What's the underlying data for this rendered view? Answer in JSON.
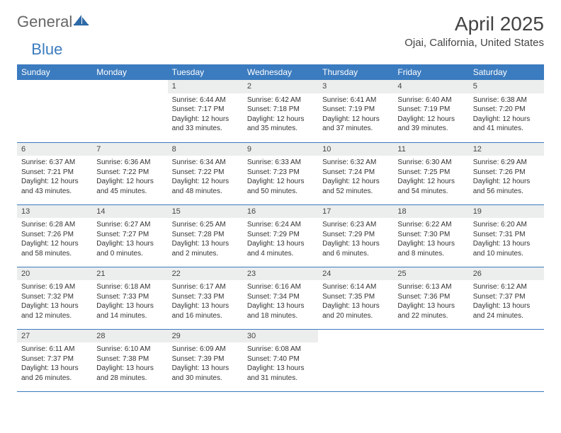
{
  "logo": {
    "text1": "General",
    "text2": "Blue"
  },
  "title": "April 2025",
  "location": "Ojai, California, United States",
  "colors": {
    "header_bg": "#3b7bbf",
    "header_text": "#ffffff",
    "daynum_bg": "#eceded",
    "row_border": "#3b7bbf",
    "text": "#333333",
    "page_bg": "#ffffff"
  },
  "fonts": {
    "title_size_pt": 21,
    "location_size_pt": 11,
    "header_size_pt": 9,
    "body_size_pt": 7.5
  },
  "day_headers": [
    "Sunday",
    "Monday",
    "Tuesday",
    "Wednesday",
    "Thursday",
    "Friday",
    "Saturday"
  ],
  "weeks": [
    [
      null,
      null,
      {
        "n": "1",
        "sr": "6:44 AM",
        "ss": "7:17 PM",
        "dl": "12 hours and 33 minutes."
      },
      {
        "n": "2",
        "sr": "6:42 AM",
        "ss": "7:18 PM",
        "dl": "12 hours and 35 minutes."
      },
      {
        "n": "3",
        "sr": "6:41 AM",
        "ss": "7:19 PM",
        "dl": "12 hours and 37 minutes."
      },
      {
        "n": "4",
        "sr": "6:40 AM",
        "ss": "7:19 PM",
        "dl": "12 hours and 39 minutes."
      },
      {
        "n": "5",
        "sr": "6:38 AM",
        "ss": "7:20 PM",
        "dl": "12 hours and 41 minutes."
      }
    ],
    [
      {
        "n": "6",
        "sr": "6:37 AM",
        "ss": "7:21 PM",
        "dl": "12 hours and 43 minutes."
      },
      {
        "n": "7",
        "sr": "6:36 AM",
        "ss": "7:22 PM",
        "dl": "12 hours and 45 minutes."
      },
      {
        "n": "8",
        "sr": "6:34 AM",
        "ss": "7:22 PM",
        "dl": "12 hours and 48 minutes."
      },
      {
        "n": "9",
        "sr": "6:33 AM",
        "ss": "7:23 PM",
        "dl": "12 hours and 50 minutes."
      },
      {
        "n": "10",
        "sr": "6:32 AM",
        "ss": "7:24 PM",
        "dl": "12 hours and 52 minutes."
      },
      {
        "n": "11",
        "sr": "6:30 AM",
        "ss": "7:25 PM",
        "dl": "12 hours and 54 minutes."
      },
      {
        "n": "12",
        "sr": "6:29 AM",
        "ss": "7:26 PM",
        "dl": "12 hours and 56 minutes."
      }
    ],
    [
      {
        "n": "13",
        "sr": "6:28 AM",
        "ss": "7:26 PM",
        "dl": "12 hours and 58 minutes."
      },
      {
        "n": "14",
        "sr": "6:27 AM",
        "ss": "7:27 PM",
        "dl": "13 hours and 0 minutes."
      },
      {
        "n": "15",
        "sr": "6:25 AM",
        "ss": "7:28 PM",
        "dl": "13 hours and 2 minutes."
      },
      {
        "n": "16",
        "sr": "6:24 AM",
        "ss": "7:29 PM",
        "dl": "13 hours and 4 minutes."
      },
      {
        "n": "17",
        "sr": "6:23 AM",
        "ss": "7:29 PM",
        "dl": "13 hours and 6 minutes."
      },
      {
        "n": "18",
        "sr": "6:22 AM",
        "ss": "7:30 PM",
        "dl": "13 hours and 8 minutes."
      },
      {
        "n": "19",
        "sr": "6:20 AM",
        "ss": "7:31 PM",
        "dl": "13 hours and 10 minutes."
      }
    ],
    [
      {
        "n": "20",
        "sr": "6:19 AM",
        "ss": "7:32 PM",
        "dl": "13 hours and 12 minutes."
      },
      {
        "n": "21",
        "sr": "6:18 AM",
        "ss": "7:33 PM",
        "dl": "13 hours and 14 minutes."
      },
      {
        "n": "22",
        "sr": "6:17 AM",
        "ss": "7:33 PM",
        "dl": "13 hours and 16 minutes."
      },
      {
        "n": "23",
        "sr": "6:16 AM",
        "ss": "7:34 PM",
        "dl": "13 hours and 18 minutes."
      },
      {
        "n": "24",
        "sr": "6:14 AM",
        "ss": "7:35 PM",
        "dl": "13 hours and 20 minutes."
      },
      {
        "n": "25",
        "sr": "6:13 AM",
        "ss": "7:36 PM",
        "dl": "13 hours and 22 minutes."
      },
      {
        "n": "26",
        "sr": "6:12 AM",
        "ss": "7:37 PM",
        "dl": "13 hours and 24 minutes."
      }
    ],
    [
      {
        "n": "27",
        "sr": "6:11 AM",
        "ss": "7:37 PM",
        "dl": "13 hours and 26 minutes."
      },
      {
        "n": "28",
        "sr": "6:10 AM",
        "ss": "7:38 PM",
        "dl": "13 hours and 28 minutes."
      },
      {
        "n": "29",
        "sr": "6:09 AM",
        "ss": "7:39 PM",
        "dl": "13 hours and 30 minutes."
      },
      {
        "n": "30",
        "sr": "6:08 AM",
        "ss": "7:40 PM",
        "dl": "13 hours and 31 minutes."
      },
      null,
      null,
      null
    ]
  ],
  "labels": {
    "sunrise": "Sunrise:",
    "sunset": "Sunset:",
    "daylight": "Daylight:"
  }
}
